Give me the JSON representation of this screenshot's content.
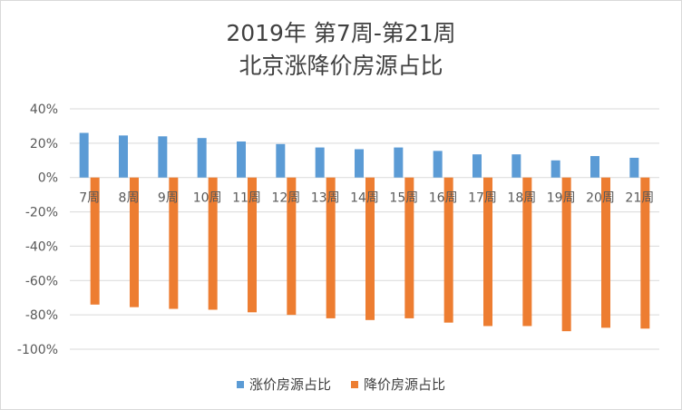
{
  "chart_data": {
    "type": "bar",
    "title": [
      "2019年 第7周-第21周",
      "北京涨降价房源占比"
    ],
    "categories": [
      "7周",
      "8周",
      "9周",
      "10周",
      "11周",
      "12周",
      "13周",
      "14周",
      "15周",
      "16周",
      "17周",
      "18周",
      "19周",
      "20周",
      "21周"
    ],
    "series": [
      {
        "name": "涨价房源占比",
        "color": "#5b9bd5",
        "values": [
          26,
          24.5,
          24,
          23,
          21,
          19.5,
          17.5,
          16.5,
          17.5,
          15.5,
          13.5,
          13.5,
          10,
          12.5,
          11.5
        ]
      },
      {
        "name": "降价房源占比",
        "color": "#ed7d31",
        "values": [
          -74,
          -75.5,
          -76.5,
          -77,
          -78.5,
          -80,
          -82,
          -83,
          -82,
          -84.5,
          -86.5,
          -86.5,
          -89.5,
          -87.5,
          -88
        ]
      }
    ],
    "ylim": [
      -100,
      40
    ],
    "yticks": [
      "40%",
      "20%",
      "0%",
      "-20%",
      "-40%",
      "-60%",
      "-80%",
      "-100%"
    ],
    "ytick_values": [
      40,
      20,
      0,
      -20,
      -40,
      -60,
      -80,
      -100
    ],
    "grid": true,
    "legend": "bottom"
  }
}
